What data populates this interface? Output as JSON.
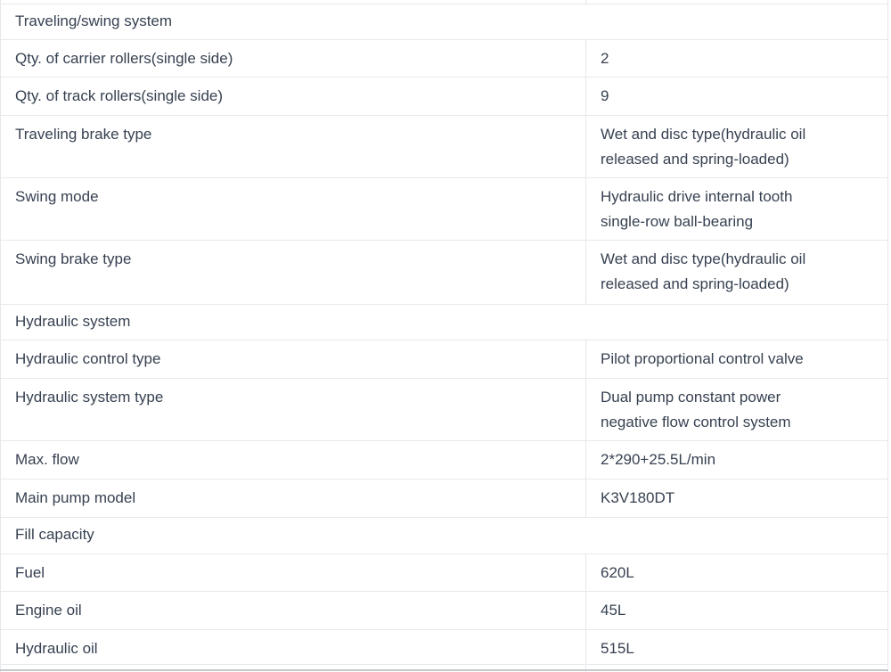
{
  "table": {
    "rows": [
      {
        "type": "section",
        "label": "Traveling/swing system"
      },
      {
        "type": "kv",
        "label": "Qty. of carrier rollers(single side)",
        "value": "2"
      },
      {
        "type": "kv",
        "label": "Qty. of track rollers(single side)",
        "value": "9"
      },
      {
        "type": "kv",
        "label": "Traveling brake type",
        "value": "Wet and disc type(hydraulic oil\nreleased and spring-loaded)"
      },
      {
        "type": "kv",
        "label": "Swing mode",
        "value": "Hydraulic drive internal tooth\nsingle-row ball-bearing"
      },
      {
        "type": "kv",
        "label": "Swing brake type",
        "value": "Wet and disc type(hydraulic oil\nreleased and spring-loaded)"
      },
      {
        "type": "section",
        "label": "Hydraulic system"
      },
      {
        "type": "kv",
        "label": "Hydraulic control type",
        "value": "Pilot proportional control valve"
      },
      {
        "type": "kv",
        "label": "Hydraulic system type",
        "value": "Dual pump constant power\nnegative flow control system"
      },
      {
        "type": "kv",
        "label": "Max. flow",
        "value": "2*290+25.5L/min"
      },
      {
        "type": "kv",
        "label": "Main pump model",
        "value": "K3V180DT"
      },
      {
        "type": "section",
        "label": "Fill capacity"
      },
      {
        "type": "kv",
        "label": "Fuel",
        "value": "620L"
      },
      {
        "type": "kv",
        "label": "Engine oil",
        "value": "45L"
      },
      {
        "type": "kv",
        "label": "Hydraulic oil",
        "value": "515L"
      }
    ],
    "colors": {
      "text": "#374151",
      "border": "#e7e8ea",
      "bottom_edge": "#c5c8cb",
      "background": "#ffffff"
    }
  }
}
